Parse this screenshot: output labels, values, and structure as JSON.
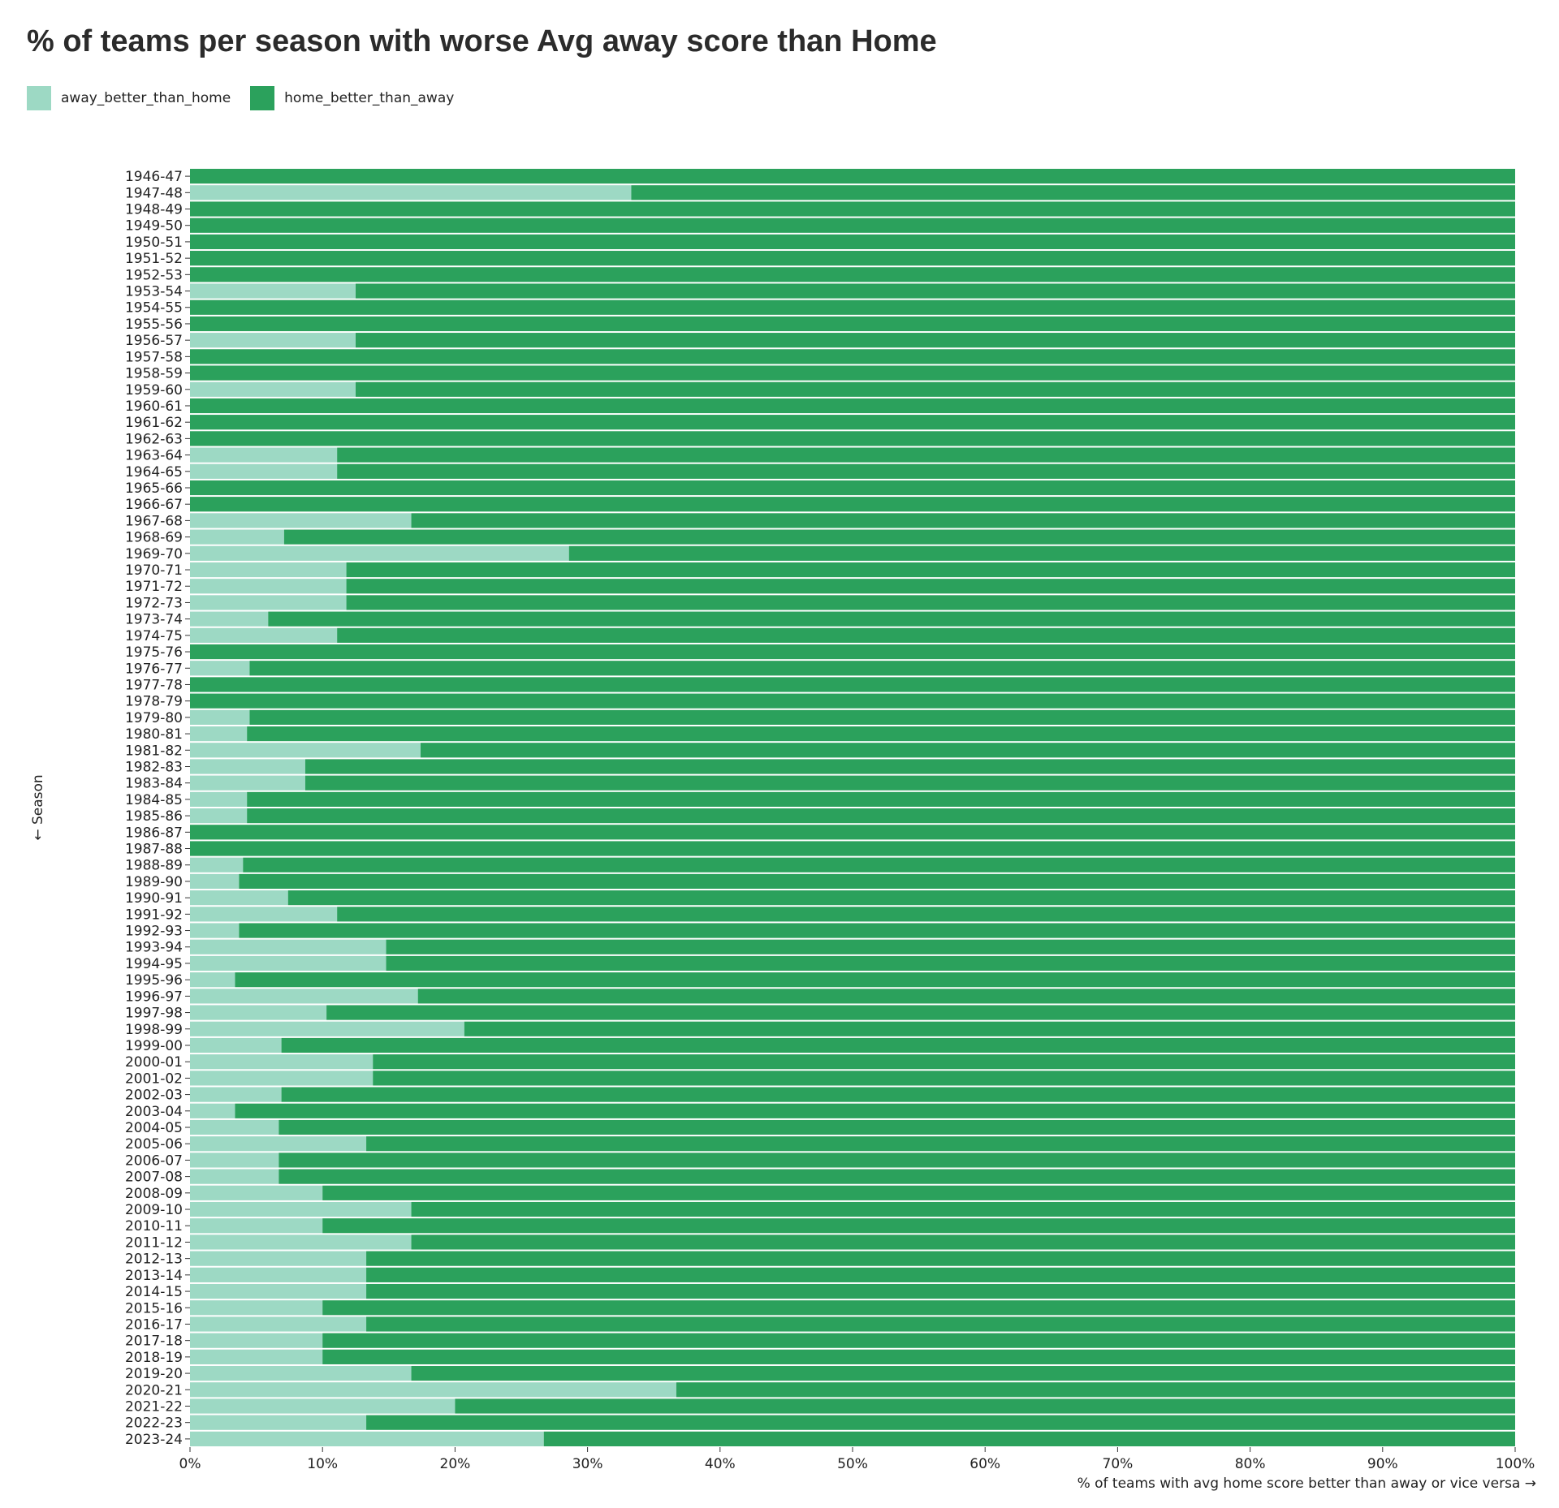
{
  "chart_data": {
    "type": "bar",
    "orientation": "horizontal-stacked-normalized",
    "title": "% of teams per season with worse Avg away score than Home",
    "xlabel": "% of teams with avg home score better than away or vice versa →",
    "ylabel": "← Season",
    "xlim": [
      0,
      100
    ],
    "x_ticks": [
      "0%",
      "10%",
      "20%",
      "30%",
      "40%",
      "50%",
      "60%",
      "70%",
      "80%",
      "90%",
      "100%"
    ],
    "grid": false,
    "legend_position": "top-left",
    "colors": {
      "away_better_than_home": "#9dd9c4",
      "home_better_than_away": "#2ba15c"
    },
    "categories": [
      "1946-47",
      "1947-48",
      "1948-49",
      "1949-50",
      "1950-51",
      "1951-52",
      "1952-53",
      "1953-54",
      "1954-55",
      "1955-56",
      "1956-57",
      "1957-58",
      "1958-59",
      "1959-60",
      "1960-61",
      "1961-62",
      "1962-63",
      "1963-64",
      "1964-65",
      "1965-66",
      "1966-67",
      "1967-68",
      "1968-69",
      "1969-70",
      "1970-71",
      "1971-72",
      "1972-73",
      "1973-74",
      "1974-75",
      "1975-76",
      "1976-77",
      "1977-78",
      "1978-79",
      "1979-80",
      "1980-81",
      "1981-82",
      "1982-83",
      "1983-84",
      "1984-85",
      "1985-86",
      "1986-87",
      "1987-88",
      "1988-89",
      "1989-90",
      "1990-91",
      "1991-92",
      "1992-93",
      "1993-94",
      "1994-95",
      "1995-96",
      "1996-97",
      "1997-98",
      "1998-99",
      "1999-00",
      "2000-01",
      "2001-02",
      "2002-03",
      "2003-04",
      "2004-05",
      "2005-06",
      "2006-07",
      "2007-08",
      "2008-09",
      "2009-10",
      "2010-11",
      "2011-12",
      "2012-13",
      "2013-14",
      "2014-15",
      "2015-16",
      "2016-17",
      "2017-18",
      "2018-19",
      "2019-20",
      "2020-21",
      "2021-22",
      "2022-23",
      "2023-24"
    ],
    "series": [
      {
        "name": "away_better_than_home",
        "values": [
          0,
          33.3,
          0,
          0,
          0,
          0,
          0,
          12.5,
          0,
          0,
          12.5,
          0,
          0,
          12.5,
          0,
          0,
          0,
          11.1,
          11.1,
          0,
          0,
          16.7,
          7.1,
          28.6,
          11.8,
          11.8,
          11.8,
          5.9,
          11.1,
          0,
          4.5,
          0,
          0,
          4.5,
          4.3,
          17.4,
          8.7,
          8.7,
          4.3,
          4.3,
          0,
          0,
          4.0,
          3.7,
          7.4,
          11.1,
          3.7,
          14.8,
          14.8,
          3.4,
          17.2,
          10.3,
          20.7,
          6.9,
          13.8,
          13.8,
          6.9,
          3.4,
          6.7,
          13.3,
          6.7,
          6.7,
          10.0,
          16.7,
          10.0,
          16.7,
          13.3,
          13.3,
          13.3,
          10.0,
          13.3,
          10.0,
          10.0,
          16.7,
          36.7,
          20.0,
          13.3,
          26.7
        ]
      },
      {
        "name": "home_better_than_away",
        "values": [
          100,
          66.7,
          100,
          100,
          100,
          100,
          100,
          87.5,
          100,
          100,
          87.5,
          100,
          100,
          87.5,
          100,
          100,
          100,
          88.9,
          88.9,
          100,
          100,
          83.3,
          92.9,
          71.4,
          88.2,
          88.2,
          88.2,
          94.1,
          88.9,
          100,
          95.5,
          100,
          100,
          95.5,
          95.7,
          82.6,
          91.3,
          91.3,
          95.7,
          95.7,
          100,
          100,
          96.0,
          96.3,
          92.6,
          88.9,
          96.3,
          85.2,
          85.2,
          96.6,
          82.8,
          89.7,
          79.3,
          93.1,
          86.2,
          86.2,
          93.1,
          96.6,
          93.3,
          86.7,
          93.3,
          93.3,
          90.0,
          83.3,
          90.0,
          83.3,
          86.7,
          86.7,
          86.7,
          90.0,
          86.7,
          90.0,
          90.0,
          83.3,
          63.3,
          80.0,
          86.7,
          73.3
        ]
      }
    ]
  }
}
